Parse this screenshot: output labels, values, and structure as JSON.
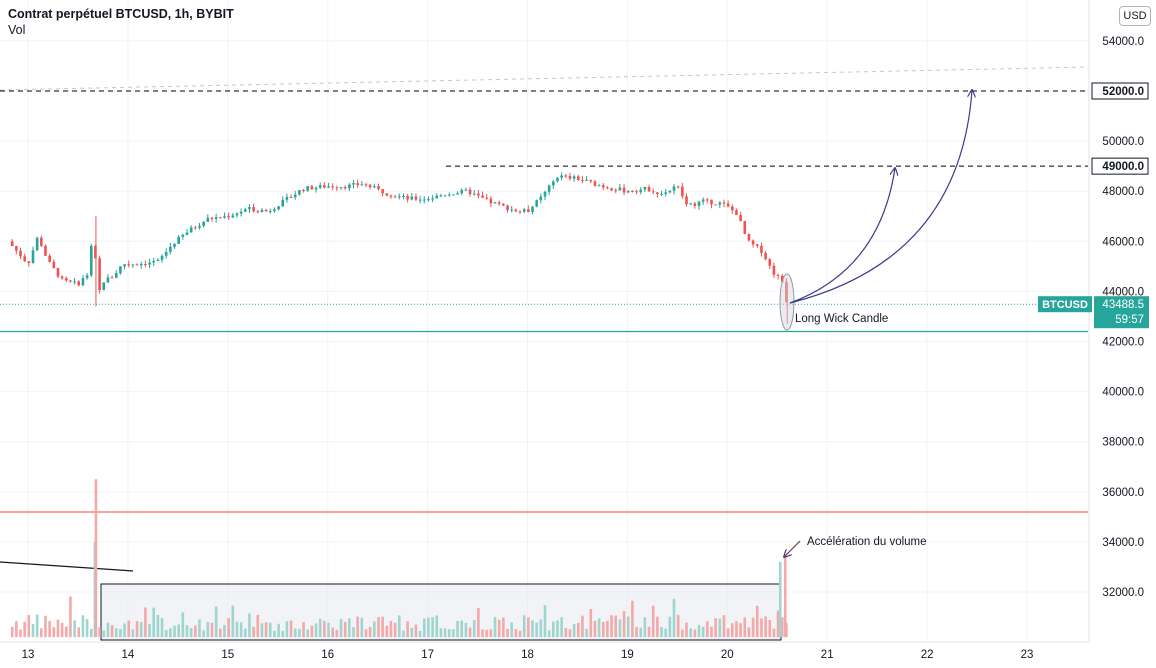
{
  "header": {
    "title": "Contrat perpétuel BTCUSD, 1h, BYBIT",
    "indicator": "Vol"
  },
  "currency_button": "USD",
  "annotations": {
    "wick": "Long Wick Candle",
    "volume": "Accélération du volume"
  },
  "price_tag": {
    "symbol": "BTCUSD",
    "price": "43488.5",
    "countdown": "59:57"
  },
  "levels": {
    "level_52000": "52000.0",
    "level_49000": "49000.0"
  },
  "colors": {
    "up": "#26a69a",
    "down": "#ef5350",
    "vol_up": "#9fd5cf",
    "vol_down": "#f4a9a8",
    "arrow": "#3f3b8a",
    "support_line": "#26a69a",
    "red_line": "#f44336"
  },
  "chart_data": {
    "type": "candlestick",
    "y_axis_ticks": [
      "54000.0",
      "52000.0",
      "50000.0",
      "48000.0",
      "46000.0",
      "44000.0",
      "42000.0",
      "40000.0",
      "38000.0",
      "36000.0",
      "34000.0",
      "32000.0"
    ],
    "y_axis_values": [
      54000,
      52000,
      50000,
      48000,
      46000,
      44000,
      42000,
      40000,
      38000,
      36000,
      34000,
      32000
    ],
    "ylim": [
      30200,
      55500
    ],
    "x_axis_labels": [
      "13",
      "14",
      "15",
      "16",
      "17",
      "18",
      "19",
      "20",
      "21",
      "22",
      "23"
    ],
    "x_axis_values": [
      13,
      14,
      15,
      16,
      17,
      18,
      19,
      20,
      21,
      22,
      23
    ],
    "xlim": [
      12.8,
      23.9
    ],
    "horizontal_levels": [
      {
        "price": 52000,
        "style": "dashed"
      },
      {
        "price": 49000,
        "style": "dashed",
        "from_day": 17.2
      },
      {
        "price": 42400,
        "style": "solid-teal"
      },
      {
        "price": 35200,
        "style": "solid-red"
      }
    ],
    "last_price": 43488.5,
    "price_path": [
      [
        12.8,
        46000
      ],
      [
        13.0,
        45100
      ],
      [
        13.1,
        46200
      ],
      [
        13.2,
        45200
      ],
      [
        13.35,
        44400
      ],
      [
        13.5,
        44300
      ],
      [
        13.6,
        44700
      ],
      [
        13.67,
        46900
      ],
      [
        13.68,
        43600
      ],
      [
        13.75,
        44400
      ],
      [
        13.85,
        44600
      ],
      [
        13.95,
        45100
      ],
      [
        14.1,
        45100
      ],
      [
        14.3,
        45200
      ],
      [
        14.45,
        45900
      ],
      [
        14.6,
        46400
      ],
      [
        14.8,
        46900
      ],
      [
        15.0,
        47000
      ],
      [
        15.2,
        47300
      ],
      [
        15.4,
        47200
      ],
      [
        15.6,
        47700
      ],
      [
        15.75,
        48100
      ],
      [
        16.0,
        48200
      ],
      [
        16.2,
        48200
      ],
      [
        16.35,
        48300
      ],
      [
        16.6,
        47900
      ],
      [
        16.8,
        47700
      ],
      [
        17.0,
        47700
      ],
      [
        17.2,
        47900
      ],
      [
        17.4,
        48000
      ],
      [
        17.6,
        47600
      ],
      [
        17.9,
        47200
      ],
      [
        18.0,
        47200
      ],
      [
        18.15,
        47800
      ],
      [
        18.3,
        48600
      ],
      [
        18.5,
        48500
      ],
      [
        18.75,
        48200
      ],
      [
        19.0,
        48000
      ],
      [
        19.2,
        48100
      ],
      [
        19.35,
        47900
      ],
      [
        19.5,
        48200
      ],
      [
        19.6,
        47400
      ],
      [
        19.75,
        47600
      ],
      [
        19.95,
        47500
      ],
      [
        20.1,
        47100
      ],
      [
        20.2,
        46000
      ],
      [
        20.35,
        45600
      ],
      [
        20.45,
        44800
      ],
      [
        20.55,
        44400
      ],
      [
        20.6,
        43500
      ]
    ],
    "volume_spikes": [
      [
        13.67,
        34000
      ],
      [
        13.68,
        36500
      ],
      [
        20.53,
        33200
      ],
      [
        20.58,
        33500
      ]
    ],
    "annotations": [
      {
        "text": "Long Wick Candle",
        "day": 20.6,
        "price": 43500
      },
      {
        "text": "Accélération du volume",
        "day": 20.6,
        "price": 33500
      }
    ]
  }
}
